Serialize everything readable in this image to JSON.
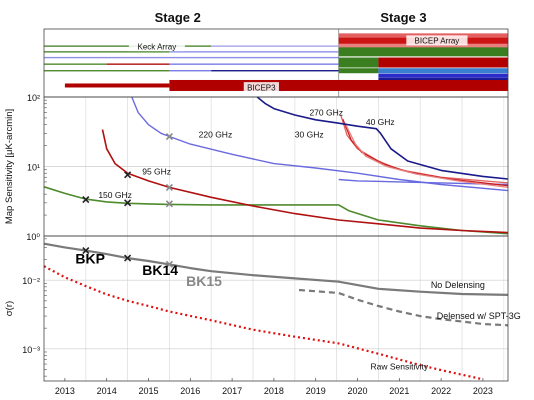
{
  "chart_data": {
    "type": "line",
    "x_ticks": [
      "2013",
      "2014",
      "2015",
      "2016",
      "2017",
      "2018",
      "2019",
      "2020",
      "2021",
      "2022",
      "2023"
    ],
    "xlim": [
      2012.5,
      2023.6
    ],
    "stages": [
      {
        "label": "Stage 2",
        "center": 2015.7
      },
      {
        "label": "Stage 3",
        "center": 2021.1
      }
    ],
    "stage_divider": 2019.55,
    "timeline": {
      "labels": [
        {
          "text": "Keck Array",
          "x": 2015.2,
          "row": 1.6
        },
        {
          "text": "BICEP Array",
          "x": 2021.9,
          "row": 0.9
        },
        {
          "text": "BICEP3",
          "x": 2017.7,
          "row": 6.6
        }
      ],
      "bars": [
        {
          "start": 2012.5,
          "end": 2016.5,
          "row": 1.6,
          "thick": 1.4,
          "color": "#4e8a2e"
        },
        {
          "start": 2016.5,
          "end": 2019.55,
          "row": 1.6,
          "thick": 1.4,
          "color": "#a5a5ee"
        },
        {
          "start": 2012.5,
          "end": 2015.5,
          "row": 2.3,
          "thick": 1.4,
          "color": "#4e8a2e"
        },
        {
          "start": 2015.5,
          "end": 2019.55,
          "row": 2.3,
          "thick": 1.4,
          "color": "#8f8fe8"
        },
        {
          "start": 2012.5,
          "end": 2019.55,
          "row": 3.0,
          "thick": 1.4,
          "color": "#8f8fe8"
        },
        {
          "start": 2012.5,
          "end": 2014.0,
          "row": 3.8,
          "thick": 1.4,
          "color": "#4e8a2e"
        },
        {
          "start": 2014.0,
          "end": 2015.5,
          "row": 3.8,
          "thick": 1.4,
          "color": "#b01010"
        },
        {
          "start": 2015.5,
          "end": 2019.55,
          "row": 3.8,
          "thick": 1.4,
          "color": "#7b7be6"
        },
        {
          "start": 2012.5,
          "end": 2015.5,
          "row": 4.6,
          "thick": 1.4,
          "color": "#4e8a2e"
        },
        {
          "start": 2015.5,
          "end": 2016.5,
          "row": 4.6,
          "thick": 1.4,
          "color": "#7b7be6"
        },
        {
          "start": 2016.5,
          "end": 2019.55,
          "row": 4.6,
          "thick": 1.4,
          "color": "#1a1a8a"
        },
        {
          "start": 2019.55,
          "end": 2023.6,
          "row": 0.35,
          "thick": 5,
          "color": "#e46060"
        },
        {
          "start": 2019.55,
          "end": 2023.6,
          "row": 1.0,
          "thick": 7,
          "color": "#cc1414"
        },
        {
          "start": 2019.55,
          "end": 2023.6,
          "row": 1.55,
          "thick": 4,
          "color": "#e88080"
        },
        {
          "start": 2019.55,
          "end": 2023.6,
          "row": 2.3,
          "thick": 9,
          "color": "#3a7e20"
        },
        {
          "start": 2019.55,
          "end": 2020.5,
          "row": 3.6,
          "thick": 10,
          "color": "#3a7e20"
        },
        {
          "start": 2020.5,
          "end": 2023.6,
          "row": 3.6,
          "thick": 10,
          "color": "#b00000"
        },
        {
          "start": 2019.55,
          "end": 2020.5,
          "row": 4.6,
          "thick": 5,
          "color": "#3a7e20"
        },
        {
          "start": 2020.5,
          "end": 2023.6,
          "row": 4.6,
          "thick": 5,
          "color": "#3a7ed0"
        },
        {
          "start": 2020.5,
          "end": 2023.6,
          "row": 5.2,
          "thick": 4,
          "color": "#2a2ac8"
        },
        {
          "start": 2020.5,
          "end": 2023.6,
          "row": 5.7,
          "thick": 4,
          "color": "#1a1a9a"
        },
        {
          "start": 2013.0,
          "end": 2015.5,
          "row": 6.4,
          "thick": 4,
          "color": "#b00000"
        },
        {
          "start": 2015.5,
          "end": 2023.6,
          "row": 6.4,
          "thick": 11,
          "color": "#b00000"
        }
      ]
    },
    "top_panel": {
      "ylabel": "Map Sensitivity [μK-arcmin]",
      "yscale": "log",
      "ylim": [
        1,
        100
      ],
      "y_ticks": [
        {
          "value": 100,
          "label": "10²"
        },
        {
          "value": 10,
          "label": "10¹"
        },
        {
          "value": 1,
          "label": "10⁰"
        }
      ],
      "series": [
        {
          "key": "150",
          "color": "#4e8a2e",
          "width": 1.6,
          "x": [
            2012.5,
            2013.0,
            2013.5,
            2014.0,
            2014.5,
            2015.0,
            2015.5,
            2016.5,
            2017.5,
            2018.5,
            2019.55,
            2019.8,
            2020.5,
            2021.5,
            2022.5,
            2023.6
          ],
          "y": [
            5.1,
            4.1,
            3.4,
            3.1,
            2.95,
            2.9,
            2.85,
            2.8,
            2.8,
            2.8,
            2.8,
            2.3,
            1.7,
            1.4,
            1.2,
            1.08
          ]
        },
        {
          "key": "95",
          "color": "#b01010",
          "width": 1.6,
          "x": [
            2013.9,
            2014.0,
            2014.2,
            2014.5,
            2015.0,
            2015.5,
            2016.5,
            2017.5,
            2018.5,
            2019.55,
            2020.5,
            2021.5,
            2022.5,
            2023.6
          ],
          "y": [
            34,
            18,
            11,
            8.0,
            6.2,
            5.0,
            3.6,
            2.7,
            2.1,
            1.7,
            1.5,
            1.3,
            1.2,
            1.12
          ]
        },
        {
          "key": "220",
          "color": "#6a6ae0",
          "width": 1.4,
          "x": [
            2014.6,
            2014.75,
            2015.0,
            2015.3,
            2015.5,
            2016.0,
            2017.0,
            2018.0,
            2019.0,
            2020.0,
            2021.0,
            2022.0,
            2023.6
          ],
          "y": [
            100,
            60,
            40,
            30,
            27,
            21,
            15,
            11,
            9.5,
            8.0,
            6.5,
            5.5,
            4.5
          ]
        },
        {
          "key": "220b",
          "color": "#6a6ae0",
          "width": 1.4,
          "x": [
            2019.55,
            2020.0,
            2021.0,
            2022.0,
            2023.6
          ],
          "y": [
            6.5,
            6.2,
            6.0,
            5.8,
            5.5
          ]
        },
        {
          "key": "30-40a",
          "color": "#e46060",
          "width": 1.3,
          "x": [
            2019.6,
            2019.75,
            2020.0,
            2020.5,
            2021.0,
            2022.0,
            2023.6
          ],
          "y": [
            55,
            28,
            18,
            12,
            9,
            7,
            5.8
          ]
        },
        {
          "key": "30-40b",
          "color": "#cc2020",
          "width": 1.3,
          "x": [
            2019.65,
            2019.85,
            2020.1,
            2020.6,
            2021.2,
            2022.2,
            2023.6
          ],
          "y": [
            48,
            24,
            16,
            11,
            8.4,
            6.6,
            5.3
          ]
        },
        {
          "key": "30-40c",
          "color": "#e88080",
          "width": 1.3,
          "x": [
            2019.7,
            2019.95,
            2020.2,
            2020.7,
            2021.4,
            2022.4,
            2023.6
          ],
          "y": [
            42,
            21,
            14,
            10,
            7.8,
            6.2,
            5.0
          ]
        },
        {
          "key": "270",
          "color": "#1a1a8a",
          "width": 1.6,
          "x": [
            2017.6,
            2017.8,
            2018.0,
            2018.5,
            2019.0,
            2019.55,
            2020.0,
            2020.45,
            2020.55,
            2020.8,
            2021.2,
            2022.0,
            2023.0,
            2023.6
          ],
          "y": [
            100,
            80,
            68,
            55,
            47,
            42,
            38,
            35,
            30,
            18,
            12,
            8.8,
            7.2,
            6.6
          ]
        }
      ],
      "markers": [
        {
          "x": 2013.5,
          "y": 3.35,
          "color": "#222222"
        },
        {
          "x": 2014.5,
          "y": 3.0,
          "color": "#222222"
        },
        {
          "x": 2015.5,
          "y": 2.9,
          "color": "#888888"
        },
        {
          "x": 2014.5,
          "y": 7.6,
          "color": "#222222"
        },
        {
          "x": 2015.5,
          "y": 5.0,
          "color": "#888888"
        },
        {
          "x": 2015.5,
          "y": 27,
          "color": "#888888"
        }
      ],
      "labels": [
        {
          "text": "150 GHz",
          "x": 2013.8,
          "y": 3.9
        },
        {
          "text": "95 GHz",
          "x": 2014.85,
          "y": 8.5
        },
        {
          "text": "220 GHz",
          "x": 2016.2,
          "y": 29
        },
        {
          "text": "270 GHz",
          "x": 2018.85,
          "y": 60
        },
        {
          "text": "30 GHz",
          "x": 2018.5,
          "y": 29
        },
        {
          "text": "40 GHz",
          "x": 2020.2,
          "y": 44
        }
      ]
    },
    "bottom_panel": {
      "ylabel": "σ(r)",
      "yscale": "log",
      "ylim": [
        0.00034,
        0.044
      ],
      "y_ticks": [
        {
          "value": 0.01,
          "label": "10⁻²"
        },
        {
          "value": 0.001,
          "label": "10⁻³"
        }
      ],
      "series": [
        {
          "key": "no-delensing",
          "color": "#7a7a7a",
          "width": 2.2,
          "dash": "",
          "x": [
            2012.5,
            2013.0,
            2013.5,
            2014.0,
            2014.5,
            2015.0,
            2015.5,
            2016.0,
            2016.5,
            2017.5,
            2018.5,
            2019.55,
            2020.5,
            2021.5,
            2022.5,
            2023.6
          ],
          "y": [
            0.034,
            0.03,
            0.027,
            0.024,
            0.021,
            0.019,
            0.017,
            0.015,
            0.0135,
            0.0118,
            0.0106,
            0.0095,
            0.0075,
            0.0068,
            0.0063,
            0.0061
          ]
        },
        {
          "key": "delensed",
          "color": "#7a7a7a",
          "width": 2.2,
          "dash": "6,4",
          "x": [
            2018.6,
            2019.55,
            2020.0,
            2020.5,
            2021.0,
            2021.5,
            2022.0,
            2022.5,
            2023.0,
            2023.6
          ],
          "y": [
            0.0072,
            0.0065,
            0.0052,
            0.0042,
            0.0035,
            0.003,
            0.0027,
            0.0025,
            0.0023,
            0.0022
          ]
        },
        {
          "key": "raw",
          "color": "#e01010",
          "width": 2.2,
          "dash": "2,3",
          "x": [
            2012.5,
            2013.0,
            2013.5,
            2014.0,
            2014.5,
            2015.0,
            2015.5,
            2016.5,
            2017.5,
            2018.5,
            2019.55,
            2020.5,
            2021.0,
            2021.5,
            2022.0,
            2022.5,
            2023.0
          ],
          "y": [
            0.016,
            0.011,
            0.0082,
            0.0062,
            0.005,
            0.0042,
            0.0035,
            0.0026,
            0.0019,
            0.0015,
            0.0012,
            0.00085,
            0.0007,
            0.00058,
            0.00049,
            0.00042,
            0.00036
          ]
        }
      ],
      "markers": [
        {
          "x": 2013.5,
          "y": 0.027,
          "color": "#222222"
        },
        {
          "x": 2014.5,
          "y": 0.021,
          "color": "#222222"
        },
        {
          "x": 2015.5,
          "y": 0.017,
          "color": "#888888"
        }
      ],
      "labels": [
        {
          "text": "No Delensing",
          "x": 2022.4,
          "y": 0.0088,
          "size": 9,
          "weight": "normal",
          "color": "#111111"
        },
        {
          "text": "Delensed w/ SPT-3G",
          "x": 2022.9,
          "y": 0.0031,
          "size": 9,
          "weight": "normal",
          "color": "#111111"
        },
        {
          "text": "Raw Sensitivity",
          "x": 2021.0,
          "y": 0.00057,
          "size": 8.5,
          "weight": "normal",
          "color": "#111111"
        },
        {
          "text": "BKP",
          "x": 2013.25,
          "y": 0.02,
          "size": 14,
          "weight": "bold",
          "color": "#000000"
        },
        {
          "text": "BK14",
          "x": 2014.85,
          "y": 0.0137,
          "size": 14,
          "weight": "bold",
          "color": "#000000"
        },
        {
          "text": "BK15",
          "x": 2015.9,
          "y": 0.0094,
          "size": 14,
          "weight": "bold",
          "color": "#888888"
        }
      ]
    }
  }
}
